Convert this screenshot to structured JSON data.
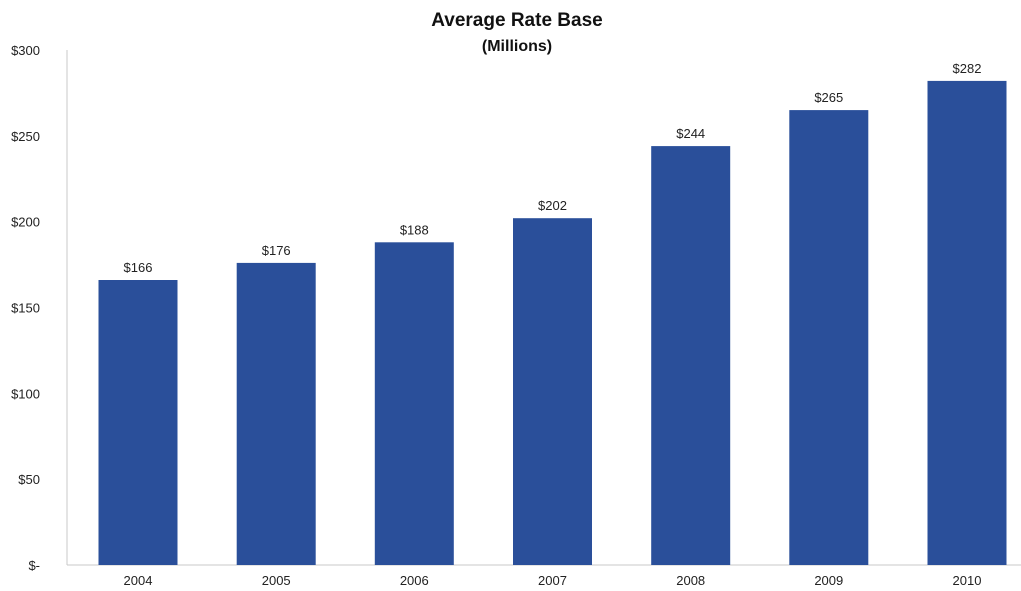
{
  "chart_data": {
    "type": "bar",
    "title": "Average Rate Base",
    "subtitle": "(Millions)",
    "xlabel": "",
    "ylabel": "",
    "categories": [
      "2004",
      "2005",
      "2006",
      "2007",
      "2008",
      "2009",
      "2010"
    ],
    "values": [
      166,
      176,
      188,
      202,
      244,
      265,
      282
    ],
    "data_labels": [
      "$166",
      "$176",
      "$188",
      "$202",
      "$244",
      "$265",
      "$282"
    ],
    "ylim": [
      0,
      300
    ],
    "y_ticks": [
      0,
      50,
      100,
      150,
      200,
      250,
      300
    ],
    "y_tick_labels": [
      "$-",
      "$50",
      "$100",
      "$150",
      "$200",
      "$250",
      "$300"
    ],
    "grid": false,
    "legend": "none",
    "bar_color": "#2a4f9a"
  }
}
